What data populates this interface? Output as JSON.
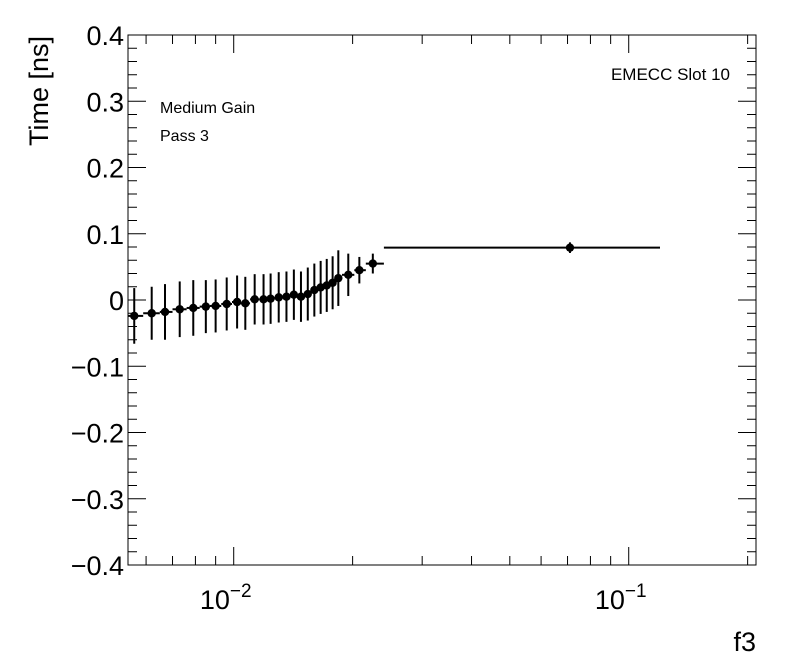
{
  "chart_data": {
    "type": "scatter",
    "title": "",
    "xlabel": "f3",
    "ylabel": "Time [ns]",
    "xscale": "log",
    "xlim": [
      0.0054,
      0.21
    ],
    "ylim": [
      -0.4,
      0.4
    ],
    "grid": false,
    "legend": "none",
    "annotations": [
      "EMECC Slot 10",
      "Medium Gain",
      "Pass 3"
    ],
    "y_ticks": [
      {
        "value": 0.4,
        "label": "0.4"
      },
      {
        "value": 0.3,
        "label": "0.3"
      },
      {
        "value": 0.2,
        "label": "0.2"
      },
      {
        "value": 0.1,
        "label": "0.1"
      },
      {
        "value": 0.0,
        "label": "0"
      },
      {
        "value": -0.1,
        "label": "−0.1"
      },
      {
        "value": -0.2,
        "label": "−0.2"
      },
      {
        "value": -0.3,
        "label": "−0.3"
      },
      {
        "value": -0.4,
        "label": "−0.4"
      }
    ],
    "x_ticks": [
      {
        "value": 0.01,
        "base": "10",
        "exp": "−2"
      },
      {
        "value": 0.1,
        "base": "10",
        "exp": "−1"
      }
    ],
    "marker_color": "#000000",
    "points": [
      {
        "x": 0.0056,
        "y": -0.024,
        "xerr": [
          0.0054,
          0.0059
        ],
        "yerr": 0.042
      },
      {
        "x": 0.0062,
        "y": -0.02,
        "xerr": [
          0.0059,
          0.0065
        ],
        "yerr": 0.04
      },
      {
        "x": 0.0067,
        "y": -0.018,
        "xerr": [
          0.0065,
          0.007
        ],
        "yerr": 0.042
      },
      {
        "x": 0.0073,
        "y": -0.014,
        "xerr": [
          0.007,
          0.0076
        ],
        "yerr": 0.042
      },
      {
        "x": 0.0079,
        "y": -0.012,
        "xerr": [
          0.0076,
          0.0082
        ],
        "yerr": 0.042
      },
      {
        "x": 0.0085,
        "y": -0.01,
        "xerr": [
          0.0082,
          0.0087
        ],
        "yerr": 0.04
      },
      {
        "x": 0.009,
        "y": -0.009,
        "xerr": [
          0.0087,
          0.0093
        ],
        "yerr": 0.04
      },
      {
        "x": 0.0096,
        "y": -0.006,
        "xerr": [
          0.0093,
          0.0099
        ],
        "yerr": 0.04
      },
      {
        "x": 0.0102,
        "y": -0.003,
        "xerr": [
          0.0099,
          0.0104
        ],
        "yerr": 0.04
      },
      {
        "x": 0.0107,
        "y": -0.005,
        "xerr": [
          0.0104,
          0.011
        ],
        "yerr": 0.04
      },
      {
        "x": 0.0113,
        "y": 0.001,
        "xerr": [
          0.011,
          0.0116
        ],
        "yerr": 0.038
      },
      {
        "x": 0.0119,
        "y": 0.001,
        "xerr": [
          0.0116,
          0.0121
        ],
        "yerr": 0.038
      },
      {
        "x": 0.0124,
        "y": 0.002,
        "xerr": [
          0.0121,
          0.0127
        ],
        "yerr": 0.038
      },
      {
        "x": 0.013,
        "y": 0.004,
        "xerr": [
          0.0127,
          0.0133
        ],
        "yerr": 0.038
      },
      {
        "x": 0.0136,
        "y": 0.005,
        "xerr": [
          0.0133,
          0.0139
        ],
        "yerr": 0.038
      },
      {
        "x": 0.0142,
        "y": 0.008,
        "xerr": [
          0.0139,
          0.0145
        ],
        "yerr": 0.038
      },
      {
        "x": 0.0148,
        "y": 0.005,
        "xerr": [
          0.0145,
          0.0151
        ],
        "yerr": 0.038
      },
      {
        "x": 0.0154,
        "y": 0.009,
        "xerr": [
          0.0151,
          0.0157
        ],
        "yerr": 0.04
      },
      {
        "x": 0.016,
        "y": 0.015,
        "xerr": [
          0.0157,
          0.0163
        ],
        "yerr": 0.04
      },
      {
        "x": 0.0166,
        "y": 0.019,
        "xerr": [
          0.0163,
          0.0169
        ],
        "yerr": 0.04
      },
      {
        "x": 0.0172,
        "y": 0.022,
        "xerr": [
          0.0169,
          0.0175
        ],
        "yerr": 0.04
      },
      {
        "x": 0.0178,
        "y": 0.026,
        "xerr": [
          0.0175,
          0.0181
        ],
        "yerr": 0.04
      },
      {
        "x": 0.0184,
        "y": 0.033,
        "xerr": [
          0.0181,
          0.0188
        ],
        "yerr": 0.042
      },
      {
        "x": 0.0195,
        "y": 0.038,
        "xerr": [
          0.0188,
          0.0202
        ],
        "yerr": 0.032
      },
      {
        "x": 0.0208,
        "y": 0.045,
        "xerr": [
          0.0202,
          0.0216
        ],
        "yerr": 0.02
      },
      {
        "x": 0.0225,
        "y": 0.055,
        "xerr": [
          0.0216,
          0.024
        ],
        "yerr": 0.015
      },
      {
        "x": 0.071,
        "y": 0.079,
        "xerr": [
          0.024,
          0.12
        ],
        "yerr": 0.008
      }
    ]
  }
}
